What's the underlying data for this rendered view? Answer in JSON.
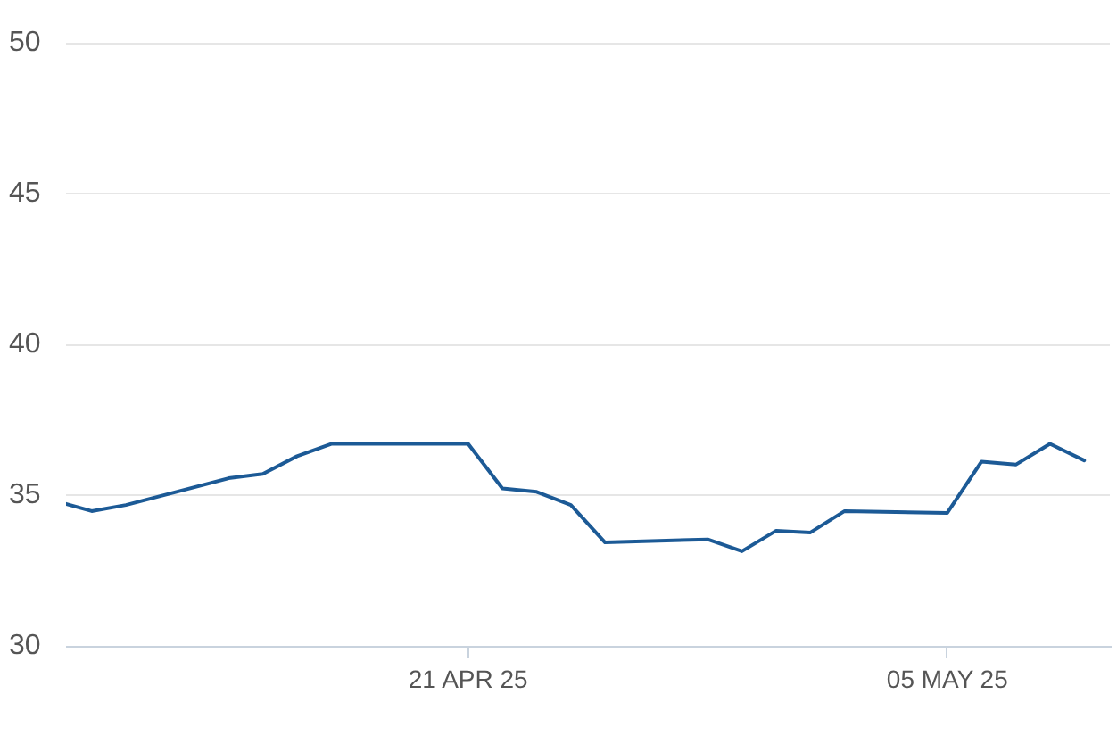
{
  "chart_data": {
    "type": "line",
    "x": [
      "2025-04-09T06:00",
      "2025-04-10",
      "2025-04-11",
      "2025-04-14",
      "2025-04-15",
      "2025-04-16",
      "2025-04-17",
      "2025-04-21",
      "2025-04-22",
      "2025-04-23",
      "2025-04-24",
      "2025-04-25",
      "2025-04-28",
      "2025-04-29",
      "2025-04-30",
      "2025-05-01",
      "2025-05-02",
      "2025-05-05",
      "2025-05-06",
      "2025-05-07",
      "2025-05-08",
      "2025-05-09"
    ],
    "series": [
      {
        "color": "#1c5a96",
        "values": [
          34.71,
          34.47,
          34.67,
          35.56,
          35.7,
          36.29,
          36.7,
          36.7,
          35.22,
          35.11,
          34.67,
          33.43,
          33.53,
          33.14,
          33.82,
          33.76,
          34.47,
          34.41,
          36.11,
          36.01,
          36.7,
          36.15
        ]
      }
    ],
    "xlim": [
      "2025-04-09T06:00",
      "2025-05-09T18:00"
    ],
    "xticks": [
      {
        "value": "2025-04-21",
        "label": "21 APR 25"
      },
      {
        "value": "2025-05-05",
        "label": "05 MAY 25"
      }
    ],
    "ylim": [
      30,
      50
    ],
    "yticks": [
      30,
      35,
      40,
      45,
      50
    ],
    "grid": "y",
    "legend": false,
    "marker": "none",
    "line_style": "solid"
  }
}
